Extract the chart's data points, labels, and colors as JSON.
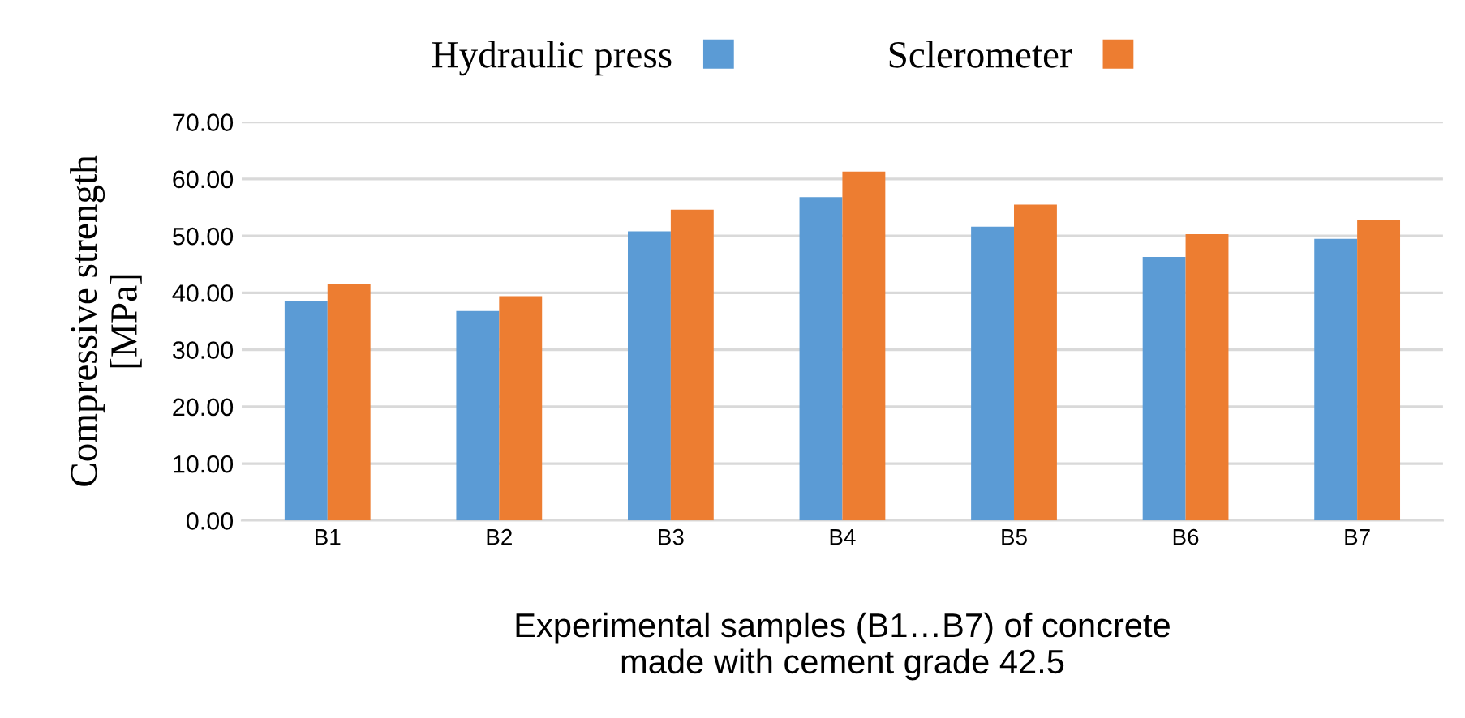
{
  "chart_data": {
    "type": "bar",
    "categories": [
      "B1",
      "B2",
      "B3",
      "B4",
      "B5",
      "B6",
      "B7"
    ],
    "series": [
      {
        "name": "Hydraulic press",
        "color": "#5b9bd5",
        "values": [
          38.6,
          36.8,
          50.8,
          56.8,
          51.6,
          46.3,
          49.5
        ]
      },
      {
        "name": "Sclerometer",
        "color": "#ed7d31",
        "values": [
          41.6,
          39.4,
          54.6,
          61.3,
          55.5,
          50.3,
          52.8
        ]
      }
    ],
    "ylabel": "Compressive strength\n[MPa]",
    "xlabel": "Experimental samples (B1…B7) of concrete\nmade with cement grade 42.5",
    "ylim": [
      0,
      70
    ],
    "yticks": [
      {
        "value": 0,
        "label": "0.00"
      },
      {
        "value": 10,
        "label": "10.00"
      },
      {
        "value": 20,
        "label": "20.00"
      },
      {
        "value": 30,
        "label": "30.00"
      },
      {
        "value": 40,
        "label": "40.00"
      },
      {
        "value": 50,
        "label": "50.00"
      },
      {
        "value": 60,
        "label": "60.00"
      },
      {
        "value": 70,
        "label": "70.00"
      }
    ],
    "grid": "y",
    "legend": "top"
  }
}
